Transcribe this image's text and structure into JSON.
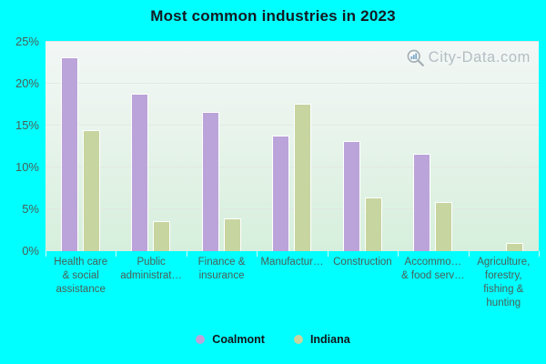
{
  "title": "Most common industries in 2023",
  "watermark": {
    "label": "City-Data.com"
  },
  "axes": {
    "y_ticks": [
      "0%",
      "5%",
      "10%",
      "15%",
      "20%",
      "25%"
    ]
  },
  "legend": {
    "items": [
      {
        "label": "Coalmont",
        "color": "#bba4d9"
      },
      {
        "label": "Indiana",
        "color": "#c7d5a0"
      }
    ]
  },
  "chart_data": {
    "type": "bar",
    "title": "Most common industries in 2023",
    "categories": [
      "Health care & social assistance",
      "Public administrat…",
      "Finance & insurance",
      "Manufactur…",
      "Construction",
      "Accommo… & food serv…",
      "Agriculture, forestry, fishing & hunting"
    ],
    "category_label_lines": [
      [
        "Health care",
        "& social",
        "assistance"
      ],
      [
        "Public",
        "administrat…"
      ],
      [
        "Finance &",
        "insurance"
      ],
      [
        "Manufactur…"
      ],
      [
        "Construction"
      ],
      [
        "Accommo…",
        "& food serv…"
      ],
      [
        "Agriculture,",
        "forestry,",
        "fishing &",
        "hunting"
      ]
    ],
    "series": [
      {
        "name": "Coalmont",
        "color": "#bba4d9",
        "values": [
          23.2,
          18.8,
          16.6,
          13.8,
          13.1,
          11.6,
          0
        ]
      },
      {
        "name": "Indiana",
        "color": "#c7d5a0",
        "values": [
          14.5,
          3.6,
          3.9,
          17.6,
          6.4,
          5.9,
          1.0
        ]
      }
    ],
    "ylim": [
      0,
      25
    ],
    "y_tick_step": 5,
    "xlabel": "",
    "ylabel": "",
    "grid": true,
    "legend_position": "bottom"
  },
  "colors": {
    "background": "#00ffff",
    "plot_gradient_top": "#f2f7f5",
    "plot_gradient_bottom": "#d6efdc",
    "gridline": "#e2e6e2",
    "bar_edge": "#ffffff",
    "axis_text": "#4c5e57",
    "title_text": "#131a22",
    "legend_text": "#10151a",
    "watermark_text": "#a9b4ba"
  }
}
